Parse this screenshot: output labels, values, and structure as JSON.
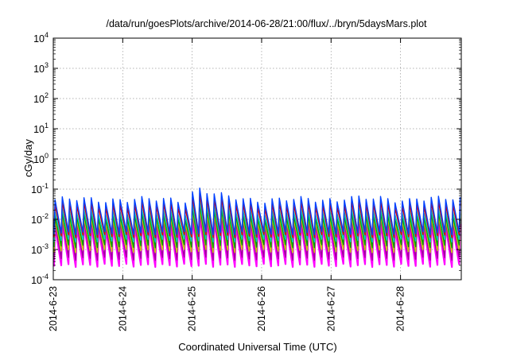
{
  "chart_data": {
    "type": "line",
    "title": "/data/run/goesPlots/archive/2014-06-28/21:00/flux/../bryn/5daysMars.plot",
    "xlabel": "Coordinated Universal Time (UTC)",
    "ylabel": "cGy/day",
    "y_scale": "log",
    "ylim": [
      0.0001,
      10000
    ],
    "y_ticks": [
      {
        "value": 0.0001,
        "base": "10",
        "exp": "-4"
      },
      {
        "value": 0.001,
        "base": "10",
        "exp": "-3"
      },
      {
        "value": 0.01,
        "base": "10",
        "exp": "-2"
      },
      {
        "value": 0.1,
        "base": "10",
        "exp": "-1"
      },
      {
        "value": 1,
        "base": "10",
        "exp": "0"
      },
      {
        "value": 10,
        "base": "10",
        "exp": "1"
      },
      {
        "value": 100,
        "base": "10",
        "exp": "2"
      },
      {
        "value": 1000,
        "base": "10",
        "exp": "3"
      },
      {
        "value": 10000,
        "base": "10",
        "exp": "4"
      }
    ],
    "xlim": [
      "2014-06-23",
      "2014-06-28 21:00"
    ],
    "x_ticks": [
      "2014-6-23",
      "2014-6-24",
      "2014-6-25",
      "2014-6-26",
      "2014-6-27",
      "2014-6-28"
    ],
    "grid": true,
    "legend": "none",
    "pattern": {
      "description": "sawtooth; oscillations with a period of about 2.5 hours",
      "period_hours": 2.5,
      "end_hours": 142
    },
    "series": [
      {
        "color": "#ff00ff",
        "peak": 0.006,
        "trough": 0.0003
      },
      {
        "color": "#a000a0",
        "peak": 0.008,
        "trough": 0.0005
      },
      {
        "color": "#c8c800",
        "peak": 0.01,
        "trough": 0.0009
      },
      {
        "color": "#00a000",
        "peak": 0.013,
        "trough": 0.0013
      },
      {
        "color": "#00c8c8",
        "peak": 0.018,
        "trough": 0.002
      },
      {
        "color": "#e00000",
        "peak": 0.03,
        "trough": 0.0028
      },
      {
        "color": "#0040ff",
        "peak": 0.045,
        "trough": 0.0035
      }
    ],
    "events": [
      {
        "day": "2014-06-25",
        "hour_offset": 0.7,
        "boost": 1.7
      },
      {
        "day": "2014-06-25",
        "hour_offset": 3.2,
        "boost": 1.5
      },
      {
        "day": "2014-06-27",
        "hour_offset": 3.5,
        "boost": 1.3
      },
      {
        "day": "2014-06-28",
        "hour_offset": 5.0,
        "boost": 1.2
      }
    ]
  }
}
